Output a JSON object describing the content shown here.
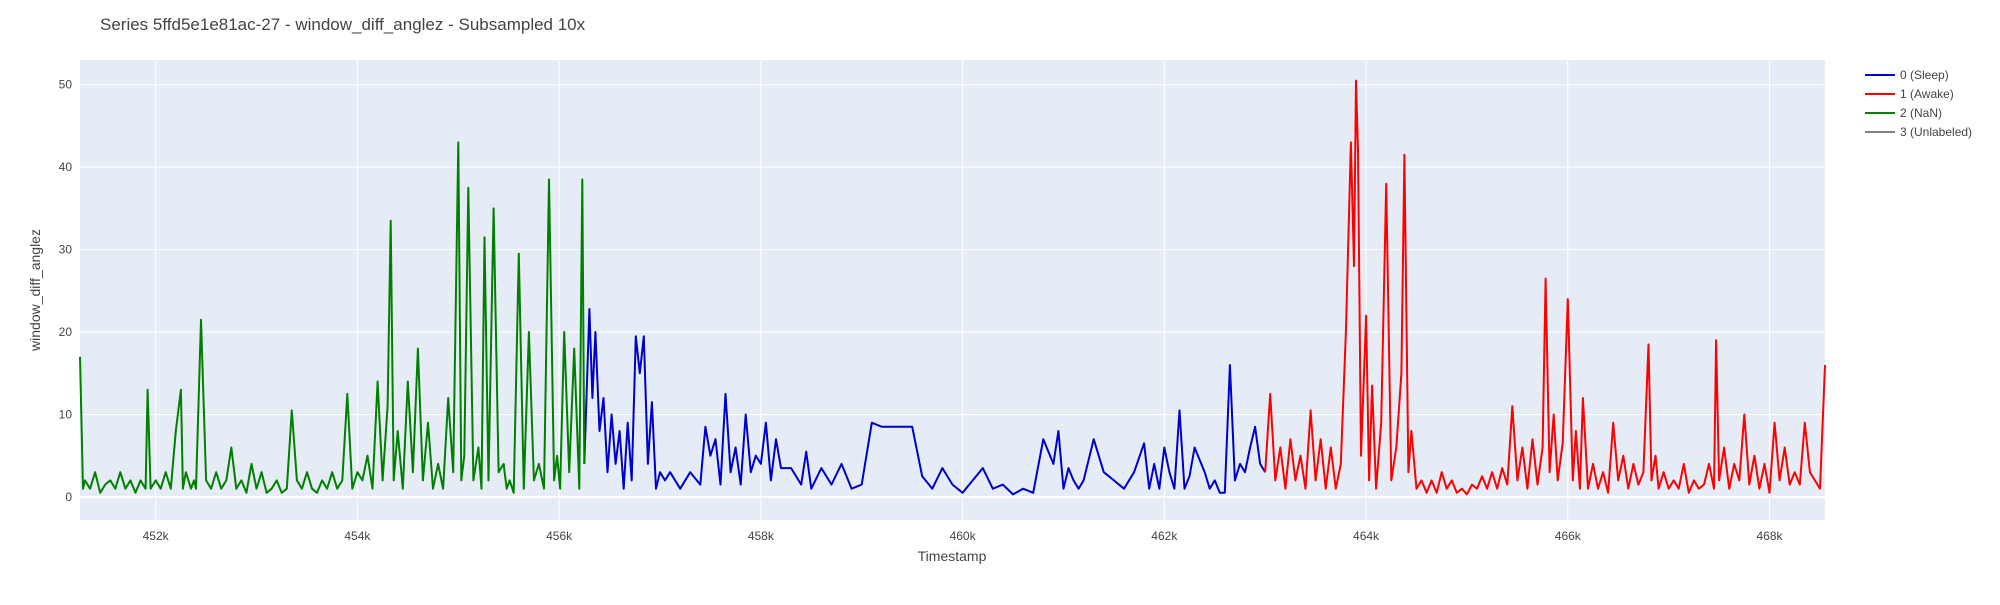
{
  "chart_data": {
    "type": "line",
    "title": "Series 5ffd5e1e81ac-27 - window_diff_anglez - Subsampled 10x",
    "xlabel": "Timestamp",
    "ylabel": "window_diff_anglez",
    "xlim": [
      451250,
      468550
    ],
    "ylim": [
      -2.8,
      53
    ],
    "x_ticks": [
      452000,
      454000,
      456000,
      458000,
      460000,
      462000,
      464000,
      466000,
      468000
    ],
    "x_tick_labels": [
      "452k",
      "454k",
      "456k",
      "458k",
      "460k",
      "462k",
      "464k",
      "466k",
      "468k"
    ],
    "y_ticks": [
      0,
      10,
      20,
      30,
      40,
      50
    ],
    "y_tick_labels": [
      "0",
      "10",
      "20",
      "30",
      "40",
      "50"
    ],
    "grid": true,
    "legend_position": "top-right",
    "series": [
      {
        "name": "0 (Sleep)",
        "color": "#0000cc",
        "x": [
          456250,
          456300,
          456330,
          456360,
          456400,
          456440,
          456480,
          456520,
          456560,
          456600,
          456640,
          456680,
          456720,
          456760,
          456800,
          456840,
          456880,
          456920,
          456960,
          457000,
          457050,
          457100,
          457200,
          457300,
          457400,
          457450,
          457500,
          457550,
          457600,
          457650,
          457700,
          457750,
          457800,
          457850,
          457900,
          457950,
          458000,
          458050,
          458100,
          458150,
          458200,
          458300,
          458400,
          458450,
          458500,
          458600,
          458700,
          458800,
          458900,
          459000,
          459100,
          459200,
          459300,
          459350,
          459400,
          459500,
          459600,
          459700,
          459800,
          459900,
          460000,
          460100,
          460200,
          460300,
          460400,
          460500,
          460600,
          460700,
          460800,
          460900,
          460950,
          461000,
          461050,
          461100,
          461150,
          461200,
          461300,
          461400,
          461500,
          461600,
          461700,
          461800,
          461850,
          461900,
          461950,
          462000,
          462050,
          462100,
          462150,
          462200,
          462250,
          462300,
          462400,
          462450,
          462500,
          462550,
          462600,
          462650,
          462700,
          462750,
          462800,
          462850,
          462900,
          462950,
          463000
        ],
        "y": [
          4,
          22.8,
          12,
          20,
          8,
          12,
          3,
          10,
          4,
          8,
          1,
          9,
          2,
          19.5,
          15,
          19.5,
          4,
          11.5,
          1,
          3,
          2,
          3,
          1,
          3,
          1.5,
          8.5,
          5,
          7,
          1.5,
          12.5,
          3,
          6,
          1.5,
          10,
          3,
          5,
          4,
          9,
          2,
          7,
          3.5,
          3.5,
          1.5,
          5.5,
          1,
          3.5,
          1.5,
          4,
          1,
          1.5,
          9,
          8.5,
          8.5,
          8.5,
          8.5,
          8.5,
          2.5,
          1,
          3.5,
          1.5,
          0.5,
          2,
          3.5,
          1,
          1.5,
          0.3,
          1,
          0.5,
          7,
          4,
          8,
          1,
          3.5,
          2,
          1,
          2,
          7,
          3,
          2,
          1,
          3,
          6.5,
          1,
          4,
          1,
          6,
          3,
          1,
          10.5,
          1,
          2.5,
          6,
          3,
          1,
          2,
          0.5,
          0.5,
          16,
          2,
          4,
          3,
          6,
          8.5,
          4,
          3
        ]
      },
      {
        "name": "1 (Awake)",
        "color": "#ff0000",
        "x": [
          463000,
          463050,
          463100,
          463150,
          463200,
          463250,
          463300,
          463350,
          463400,
          463450,
          463500,
          463550,
          463600,
          463650,
          463700,
          463750,
          463800,
          463850,
          463880,
          463900,
          463920,
          463950,
          464000,
          464030,
          464060,
          464100,
          464150,
          464200,
          464250,
          464300,
          464350,
          464380,
          464420,
          464450,
          464500,
          464550,
          464600,
          464650,
          464700,
          464750,
          464800,
          464850,
          464900,
          464950,
          465000,
          465050,
          465100,
          465150,
          465200,
          465250,
          465300,
          465350,
          465400,
          465450,
          465500,
          465550,
          465600,
          465650,
          465700,
          465750,
          465780,
          465820,
          465860,
          465900,
          465950,
          466000,
          466050,
          466080,
          466120,
          466150,
          466200,
          466250,
          466300,
          466350,
          466400,
          466450,
          466500,
          466550,
          466600,
          466650,
          466700,
          466750,
          466800,
          466830,
          466870,
          466900,
          466950,
          467000,
          467050,
          467100,
          467150,
          467200,
          467250,
          467300,
          467350,
          467400,
          467450,
          467470,
          467500,
          467550,
          467600,
          467650,
          467700,
          467750,
          467800,
          467850,
          467900,
          467950,
          468000,
          468050,
          468100,
          468150,
          468200,
          468250,
          468300,
          468350,
          468400,
          468450,
          468500,
          468550
        ],
        "y": [
          3,
          12.5,
          2,
          6,
          1,
          7,
          2,
          5,
          1,
          10.5,
          2,
          7,
          1,
          6,
          1,
          4,
          20,
          43,
          28,
          50.5,
          42,
          5,
          22,
          2,
          13.5,
          1,
          9,
          38,
          2,
          6,
          15,
          41.5,
          3,
          8,
          1,
          2,
          0.5,
          2,
          0.5,
          3,
          1,
          2,
          0.5,
          1,
          0.3,
          1.5,
          1,
          2.5,
          1,
          3,
          1,
          3.5,
          1.5,
          11,
          2,
          6,
          1,
          7,
          1.5,
          6,
          26.5,
          3,
          10,
          2,
          6.5,
          24,
          2,
          8,
          1,
          12,
          1,
          4,
          1,
          3,
          0.5,
          9,
          2,
          5,
          1,
          4,
          1.5,
          3,
          18.5,
          2,
          5,
          1,
          3,
          1,
          2,
          1,
          4,
          0.5,
          2,
          1,
          1.5,
          4,
          1,
          19,
          2,
          6,
          1,
          4,
          2,
          10,
          1.5,
          5,
          1,
          4,
          0.5,
          9,
          2,
          6,
          1.5,
          3,
          1.5,
          9,
          3,
          2,
          1,
          16
        ]
      },
      {
        "name": "2 (NaN)",
        "color": "#008000",
        "x": [
          451250,
          451280,
          451300,
          451350,
          451400,
          451450,
          451500,
          451550,
          451600,
          451650,
          451700,
          451750,
          451800,
          451850,
          451900,
          451920,
          451950,
          452000,
          452050,
          452100,
          452150,
          452200,
          452250,
          452270,
          452300,
          452350,
          452380,
          452400,
          452450,
          452500,
          452550,
          452600,
          452650,
          452700,
          452750,
          452800,
          452850,
          452900,
          452950,
          453000,
          453050,
          453100,
          453150,
          453200,
          453250,
          453300,
          453350,
          453400,
          453450,
          453500,
          453550,
          453600,
          453650,
          453700,
          453750,
          453800,
          453850,
          453900,
          453950,
          454000,
          454050,
          454100,
          454150,
          454200,
          454250,
          454300,
          454330,
          454360,
          454400,
          454450,
          454500,
          454550,
          454600,
          454650,
          454700,
          454750,
          454800,
          454850,
          454900,
          454950,
          455000,
          455030,
          455060,
          455100,
          455150,
          455200,
          455230,
          455260,
          455300,
          455350,
          455400,
          455450,
          455480,
          455510,
          455550,
          455600,
          455650,
          455700,
          455750,
          455800,
          455850,
          455900,
          455950,
          455980,
          456010,
          456050,
          456100,
          456150,
          456200,
          456230,
          456250
        ],
        "y": [
          17,
          1,
          2,
          1,
          3,
          0.5,
          1.5,
          2,
          1,
          3,
          1,
          2,
          0.5,
          2,
          1,
          13,
          1,
          2,
          1,
          3,
          1,
          8,
          13,
          1,
          3,
          1,
          2,
          1,
          21.5,
          2,
          1,
          3,
          1,
          2,
          6,
          1,
          2,
          0.5,
          4,
          1,
          3,
          0.5,
          1,
          2,
          0.5,
          1,
          10.5,
          2,
          1,
          3,
          1,
          0.5,
          2,
          1,
          3,
          1,
          2,
          12.5,
          1,
          3,
          2,
          5,
          1,
          14,
          2,
          11,
          33.5,
          2,
          8,
          1,
          14,
          3,
          18,
          2,
          9,
          1,
          4,
          1,
          12,
          3,
          43,
          2,
          5,
          37.5,
          2,
          6,
          1,
          31.5,
          2,
          35,
          3,
          4,
          1,
          2,
          0.5,
          29.5,
          1,
          20,
          2,
          4,
          1,
          38.5,
          2,
          5,
          1,
          20,
          3,
          18,
          1,
          38.5,
          4
        ]
      },
      {
        "name": "3 (Unlabeled)",
        "color": "#808080",
        "x": [],
        "y": []
      }
    ]
  }
}
